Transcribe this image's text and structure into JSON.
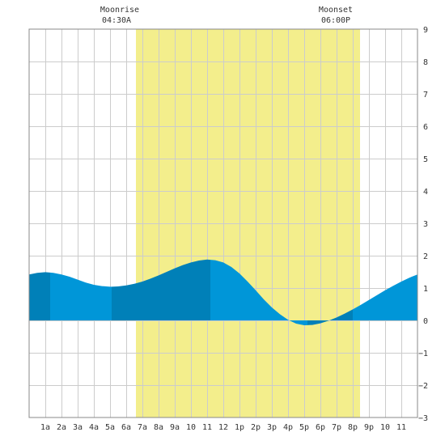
{
  "chart_data": {
    "type": "area",
    "x_tick_labels": [
      "1a",
      "2a",
      "3a",
      "4a",
      "5a",
      "6a",
      "7a",
      "8a",
      "9a",
      "10",
      "11",
      "12",
      "1p",
      "2p",
      "3p",
      "4p",
      "5p",
      "6p",
      "7p",
      "8p",
      "9p",
      "10",
      "11"
    ],
    "y_tick_labels": [
      "9",
      "8",
      "7",
      "6",
      "5",
      "4",
      "3",
      "2",
      "1",
      "0",
      "−1",
      "−2",
      "−3"
    ],
    "ylim": [
      -3,
      9
    ],
    "xlim_hours": [
      0,
      24
    ],
    "moonrise": {
      "label": "Moonrise",
      "time": "04:30A"
    },
    "moonset": {
      "label": "Moonset",
      "time": "06:00P"
    },
    "highlight_hours": [
      6.6,
      20.45
    ],
    "series": {
      "x": [
        0,
        0.5,
        1,
        1.5,
        2,
        2.5,
        3,
        3.5,
        4,
        4.5,
        5,
        5.5,
        6,
        6.5,
        7,
        7.5,
        8,
        8.5,
        9,
        9.5,
        10,
        10.5,
        11,
        11.5,
        12,
        12.5,
        13,
        13.5,
        14,
        14.5,
        15,
        15.5,
        16,
        16.5,
        17,
        17.5,
        18,
        18.5,
        19,
        19.5,
        20,
        20.5,
        21,
        21.5,
        22,
        22.5,
        23,
        23.5,
        24
      ],
      "y": [
        1.42,
        1.47,
        1.49,
        1.47,
        1.42,
        1.35,
        1.26,
        1.17,
        1.1,
        1.06,
        1.04,
        1.05,
        1.08,
        1.13,
        1.2,
        1.29,
        1.39,
        1.5,
        1.61,
        1.71,
        1.79,
        1.85,
        1.88,
        1.86,
        1.79,
        1.65,
        1.45,
        1.2,
        0.93,
        0.65,
        0.4,
        0.19,
        0.02,
        -0.1,
        -0.15,
        -0.14,
        -0.09,
        -0.01,
        0.09,
        0.21,
        0.34,
        0.48,
        0.63,
        0.78,
        0.93,
        1.07,
        1.2,
        1.32,
        1.42
      ]
    },
    "band_boundaries_hours": [
      1.3,
      5.1,
      11.2,
      17.2,
      20.0
    ],
    "colors": {
      "highlight": "#f3ee8c",
      "fill_dark": "#0080b8",
      "fill_light": "#0096d8",
      "grid": "#cccccc"
    }
  }
}
